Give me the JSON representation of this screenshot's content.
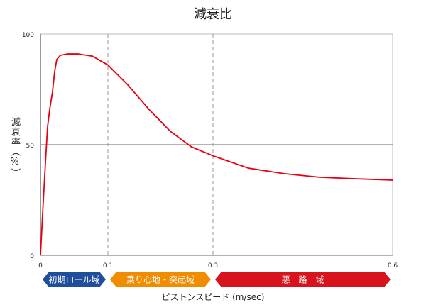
{
  "chart_data": {
    "type": "line",
    "title": "減衰比",
    "ylabel": "減衰率（%）",
    "xlabel": "ピストンスピード (m/sec)",
    "ylim": [
      0,
      100
    ],
    "yticks": [
      "0",
      "50",
      "100"
    ],
    "xticks": [
      {
        "value": 0,
        "label": "0"
      },
      {
        "value": 0.1,
        "label": "0.1"
      },
      {
        "value": 0.3,
        "label": "0.3"
      },
      {
        "value": 0.6,
        "label": "0.6"
      }
    ],
    "xscale_note": "piecewise non-linear axis",
    "series": [
      {
        "name": "減衰率",
        "color": "#e60012",
        "points": [
          [
            0,
            0
          ],
          [
            0.0032,
            19
          ],
          [
            0.0074,
            42
          ],
          [
            0.0105,
            58
          ],
          [
            0.0137,
            66
          ],
          [
            0.0179,
            74
          ],
          [
            0.021,
            83
          ],
          [
            0.0242,
            88.5
          ],
          [
            0.0295,
            90.4
          ],
          [
            0.04,
            91
          ],
          [
            0.056,
            91
          ],
          [
            0.077,
            90
          ],
          [
            0.1,
            86
          ],
          [
            0.138,
            77
          ],
          [
            0.178,
            66
          ],
          [
            0.219,
            56
          ],
          [
            0.259,
            49
          ],
          [
            0.3,
            45
          ],
          [
            0.359,
            39.4
          ],
          [
            0.419,
            36.9
          ],
          [
            0.478,
            35.3
          ],
          [
            0.537,
            34.6
          ],
          [
            0.6,
            34
          ]
        ]
      }
    ],
    "regions": [
      {
        "label": "初期ロール域",
        "from": 0,
        "to": 0.1,
        "color": "#1f4e9c"
      },
      {
        "label": "乗り心地・突起域",
        "from": 0.1,
        "to": 0.3,
        "color": "#f08c00"
      },
      {
        "label": "悪　路　域",
        "from": 0.3,
        "to": 0.6,
        "color": "#d7141e"
      }
    ]
  }
}
